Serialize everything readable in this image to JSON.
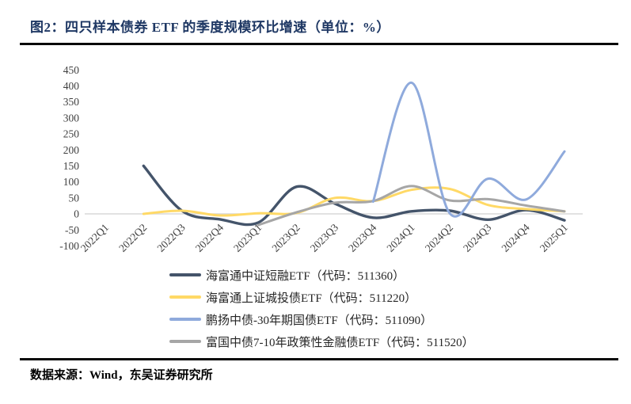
{
  "header": {
    "title": "图2：四只样本债券 ETF 的季度规模环比增速（单位：%）"
  },
  "footer": {
    "source": "数据来源：Wind，东吴证券研究所"
  },
  "colors": {
    "title": "#1F3864",
    "rule": "#0a0a0a",
    "gridline": "#D9D9D9",
    "axis_label": "#3f3f3f"
  },
  "chart_data": {
    "type": "line",
    "smooth": true,
    "title": "四只样本债券 ETF 的季度规模环比增速",
    "unit": "%",
    "categories": [
      "2022Q1",
      "2022Q2",
      "2022Q3",
      "2022Q4",
      "2023Q1",
      "2023Q2",
      "2023Q3",
      "2023Q4",
      "2024Q1",
      "2024Q2",
      "2024Q3",
      "2024Q4",
      "2025Q1"
    ],
    "series": [
      {
        "name": "海富通中证短融ETF",
        "code": "511360",
        "legend": "海富通中证短融ETF（代码：511360）",
        "color": "#44546A",
        "values": [
          null,
          150,
          10,
          -17,
          -27,
          85,
          32,
          -12,
          8,
          10,
          -18,
          12,
          -20
        ]
      },
      {
        "name": "海富通上证城投债ETF",
        "code": "511220",
        "legend": "海富通上证城投债ETF（代码：511220）",
        "color": "#FFD966",
        "values": [
          null,
          0,
          10,
          -5,
          2,
          3,
          50,
          40,
          75,
          78,
          28,
          15,
          8
        ]
      },
      {
        "name": "鹏扬中债-30年期国债ETF",
        "code": "511090",
        "legend": "鹏扬中债-30年期国债ETF（代码：511090）",
        "color": "#8FAADC",
        "values": [
          null,
          null,
          null,
          null,
          null,
          null,
          null,
          38,
          410,
          2,
          110,
          45,
          195
        ]
      },
      {
        "name": "富国中债7-10年政策性金融债ETF",
        "code": "511520",
        "legend": "富国中债7-10年政策性金融债ETF（代码：511520）",
        "color": "#A6A6A6",
        "values": [
          null,
          null,
          null,
          null,
          -35,
          5,
          35,
          40,
          87,
          42,
          46,
          26,
          8
        ]
      }
    ],
    "xlabel": "",
    "ylabel": "",
    "y_ticks": [
      450,
      400,
      350,
      300,
      250,
      200,
      150,
      100,
      50,
      0,
      -50,
      -100
    ],
    "ylim": [
      -100,
      450
    ],
    "grid": "zero-line-only",
    "legend_position": "bottom-left"
  }
}
